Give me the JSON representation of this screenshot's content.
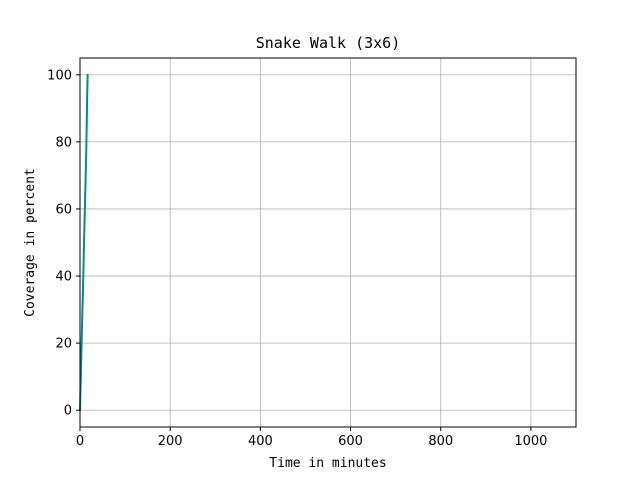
{
  "chart_data": {
    "type": "line",
    "title": "Snake Walk (3x6)",
    "xlabel": "Time in minutes",
    "ylabel": "Coverage in percent",
    "xlim": [
      0,
      1100
    ],
    "ylim": [
      -5,
      105
    ],
    "xticks": [
      0,
      200,
      400,
      600,
      800,
      1000
    ],
    "yticks": [
      0,
      20,
      40,
      60,
      80,
      100
    ],
    "grid": true,
    "series": [
      {
        "color": "#008b8b",
        "x": [
          0,
          1,
          2,
          3,
          4,
          5,
          6,
          7,
          8,
          9,
          10,
          11,
          12,
          13,
          14,
          15,
          16,
          17
        ],
        "y": [
          0,
          6,
          11,
          17,
          22,
          28,
          33,
          39,
          44,
          50,
          56,
          61,
          67,
          72,
          78,
          86,
          94,
          100
        ]
      }
    ]
  }
}
